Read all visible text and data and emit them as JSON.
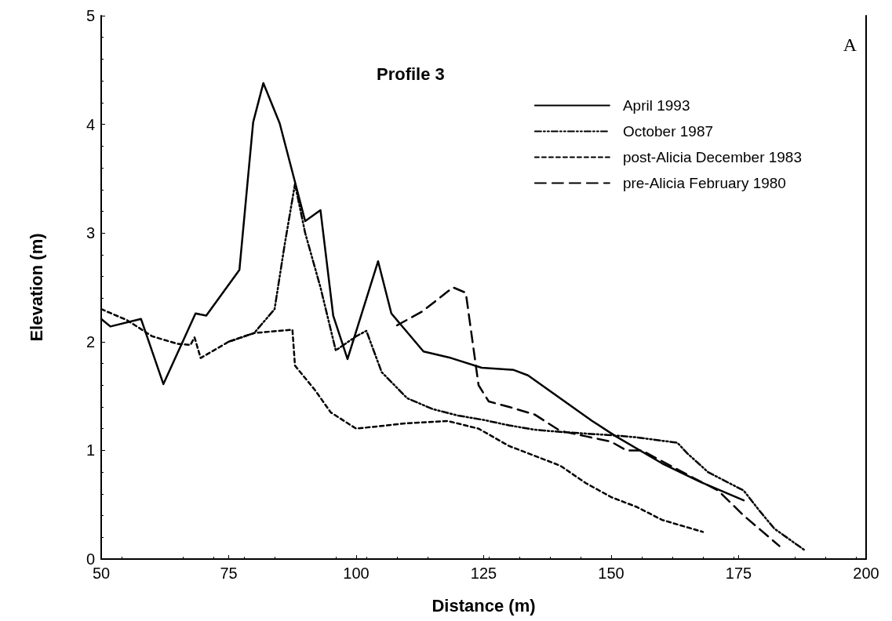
{
  "chart_data": {
    "type": "line",
    "title": "Profile 3",
    "xlabel": "Distance (m)",
    "ylabel": "Elevation (m)",
    "annotations": [
      "A"
    ],
    "xlim": [
      50,
      200
    ],
    "xticks": [
      50,
      75,
      100,
      125,
      150,
      175,
      200
    ],
    "ylim": [
      0,
      5
    ],
    "yticks": [
      0,
      1,
      2,
      3,
      4,
      5
    ],
    "grid": false,
    "legend": "top right",
    "marker": "none",
    "series": [
      {
        "name": "April 1993",
        "color": "#000000",
        "line_style": "solid",
        "x": [
          50,
          51.8,
          57.8,
          62.2,
          68.5,
          70.6,
          77.1,
          79.8,
          81.8,
          85,
          90,
          93,
          95.5,
          98.3,
          104.3,
          106.9,
          113.2,
          118.6,
          124.6,
          130.9,
          133.7,
          146.3,
          150.9,
          160,
          167.5,
          176
        ],
        "values": [
          2.21,
          2.14,
          2.21,
          1.61,
          2.26,
          2.24,
          2.66,
          4.02,
          4.38,
          4.01,
          3.11,
          3.21,
          2.24,
          1.84,
          2.74,
          2.26,
          1.91,
          1.85,
          1.76,
          1.74,
          1.69,
          1.27,
          1.13,
          0.88,
          0.71,
          0.54
        ]
      },
      {
        "name": "October 1987",
        "color": "#000000",
        "line_style": "dashdot",
        "x": [
          75,
          80,
          84,
          86,
          88,
          90,
          93,
          96,
          100,
          102,
          105,
          110,
          115,
          120,
          125,
          130,
          135,
          140,
          150,
          155,
          163,
          165,
          169,
          176,
          179,
          182,
          188
        ],
        "values": [
          2.0,
          2.08,
          2.3,
          2.9,
          3.45,
          3.0,
          2.5,
          1.92,
          2.05,
          2.1,
          1.72,
          1.48,
          1.38,
          1.32,
          1.28,
          1.23,
          1.19,
          1.17,
          1.14,
          1.12,
          1.07,
          0.97,
          0.8,
          0.63,
          0.45,
          0.28,
          0.08
        ]
      },
      {
        "name": "post-Alicia December 1983",
        "color": "#000000",
        "line_style": "dotted",
        "x": [
          50,
          55,
          60,
          65,
          67.5,
          68.3,
          69.5,
          75,
          80,
          87.5,
          88,
          92,
          95,
          100,
          110,
          118,
          124,
          130,
          140,
          145,
          150,
          155,
          160,
          168
        ],
        "values": [
          2.3,
          2.2,
          2.05,
          1.98,
          1.97,
          2.04,
          1.85,
          2.0,
          2.08,
          2.11,
          1.78,
          1.55,
          1.35,
          1.2,
          1.25,
          1.27,
          1.2,
          1.04,
          0.86,
          0.7,
          0.57,
          0.48,
          0.36,
          0.25
        ]
      },
      {
        "name": "pre-Alicia February 1980",
        "color": "#000000",
        "line_style": "dashed",
        "x": [
          108,
          113,
          119,
          121.5,
          124,
          126,
          130,
          135,
          140,
          145,
          150,
          153,
          156,
          160,
          166,
          171,
          176,
          183
        ],
        "values": [
          2.15,
          2.28,
          2.5,
          2.45,
          1.6,
          1.45,
          1.4,
          1.33,
          1.18,
          1.13,
          1.08,
          1.0,
          1.0,
          0.9,
          0.75,
          0.63,
          0.4,
          0.12
        ]
      }
    ]
  }
}
